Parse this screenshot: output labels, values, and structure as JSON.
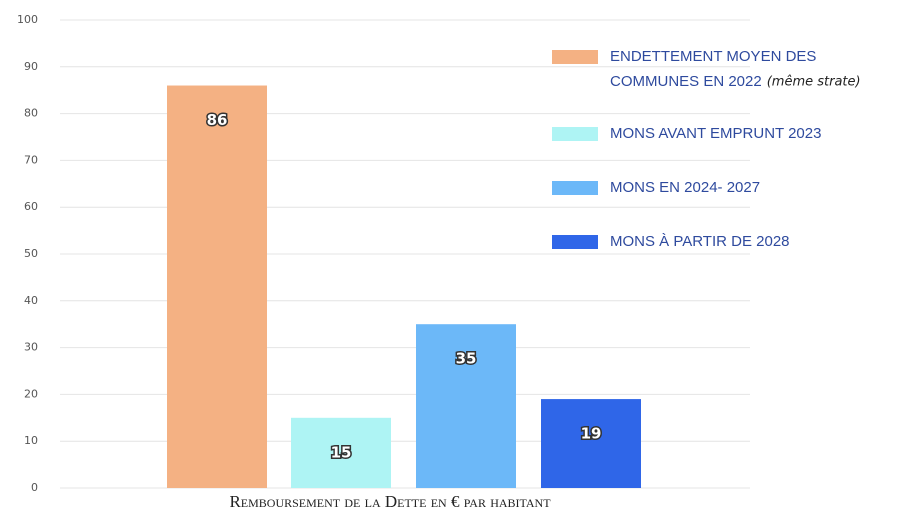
{
  "chart_data": {
    "type": "bar",
    "x_label": "Remboursement de la Dette en € par habitant",
    "series": [
      {
        "name": "ENDETTEMENT MOYEN DES COMMUNES EN 2022",
        "name_note": "(même strate)",
        "color": "#f4b183",
        "values": [
          86
        ]
      },
      {
        "name": "MONS AVANT EMPRUNT 2023",
        "color": "#aef4f4",
        "values": [
          15
        ]
      },
      {
        "name": "MONS EN 2024- 2027",
        "color": "#6cb8f8",
        "values": [
          35
        ]
      },
      {
        "name": "MONS À PARTIR DE 2028",
        "color": "#2f66e8",
        "values": [
          19
        ]
      }
    ],
    "ylim": [
      0,
      100
    ],
    "yticks": [
      0,
      10,
      20,
      30,
      40,
      50,
      60,
      70,
      80,
      90,
      100
    ],
    "grid": true,
    "legend": "right"
  }
}
